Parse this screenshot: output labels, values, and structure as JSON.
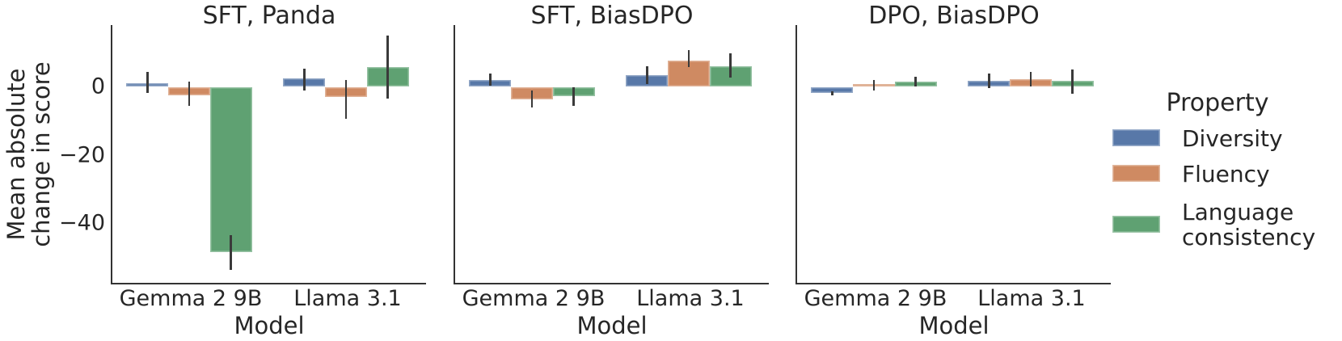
{
  "chart_data": {
    "type": "bar",
    "orientation": "vertical",
    "grid": false,
    "error_bars": true,
    "categories": [
      "Gemma 2 9B",
      "Llama 3.1"
    ],
    "xlabel": "Model",
    "ylabel": "Mean absolute change in score",
    "ylabel_lines": [
      "Mean absolute",
      "change in score"
    ],
    "yticks": [
      0,
      -20,
      -40
    ],
    "ytick_labels": [
      "0",
      "−20",
      "−40"
    ],
    "ylim": [
      -57,
      18
    ],
    "panels": [
      {
        "title": "SFT, Panda",
        "series": [
          {
            "name": "Diversity",
            "values": [
              1.0,
              2.4
            ],
            "ci": [
              [
                -1.8,
                4.4
              ],
              [
                -1.0,
                5.4
              ]
            ]
          },
          {
            "name": "Fluency",
            "values": [
              -2.5,
              -3.0
            ],
            "ci": [
              [
                -5.6,
                1.5
              ],
              [
                -9.3,
                2.1
              ]
            ]
          },
          {
            "name": "Language consistency",
            "values": [
              -48.5,
              5.9
            ],
            "ci": [
              [
                -53.5,
                -43.5
              ],
              [
                -3.5,
                15.0
              ]
            ]
          }
        ]
      },
      {
        "title": "SFT, BiasDPO",
        "series": [
          {
            "name": "Diversity",
            "values": [
              2.0,
              3.4
            ],
            "ci": [
              [
                0.3,
                3.9
              ],
              [
                0.9,
                6.0
              ]
            ]
          },
          {
            "name": "Fluency",
            "values": [
              -3.6,
              7.8
            ],
            "ci": [
              [
                -6.1,
                -1.1
              ],
              [
                5.7,
                10.8
              ]
            ]
          },
          {
            "name": "Language consistency",
            "values": [
              -2.8,
              6.1
            ],
            "ci": [
              [
                -5.5,
                -0.1
              ],
              [
                2.7,
                9.8
              ]
            ]
          }
        ]
      },
      {
        "title": "DPO, BiasDPO",
        "series": [
          {
            "name": "Diversity",
            "values": [
              -1.8,
              1.7
            ],
            "ci": [
              [
                -2.6,
                -1.2
              ],
              [
                -0.4,
                4.0
              ]
            ]
          },
          {
            "name": "Fluency",
            "values": [
              0.8,
              2.2
            ],
            "ci": [
              [
                -1.0,
                2.1
              ],
              [
                0.0,
                4.4
              ]
            ]
          },
          {
            "name": "Language consistency",
            "values": [
              1.5,
              1.8
            ],
            "ci": [
              [
                0.0,
                2.9
              ],
              [
                -2.0,
                5.0
              ]
            ]
          }
        ]
      }
    ],
    "legend": {
      "title": "Property",
      "position": "right",
      "items": [
        {
          "label": "Diversity",
          "color": "#5878A8"
        },
        {
          "label": "Fluency",
          "color": "#CF8A62"
        },
        {
          "label": "Language consistency",
          "color": "#5FA172"
        }
      ]
    },
    "colors": {
      "diversity": "#5878A8",
      "fluency": "#CF8A62",
      "language_consistency": "#5FA172",
      "errorbar": "#3a3a3a",
      "spine": "#333333",
      "text": "#262626"
    }
  }
}
